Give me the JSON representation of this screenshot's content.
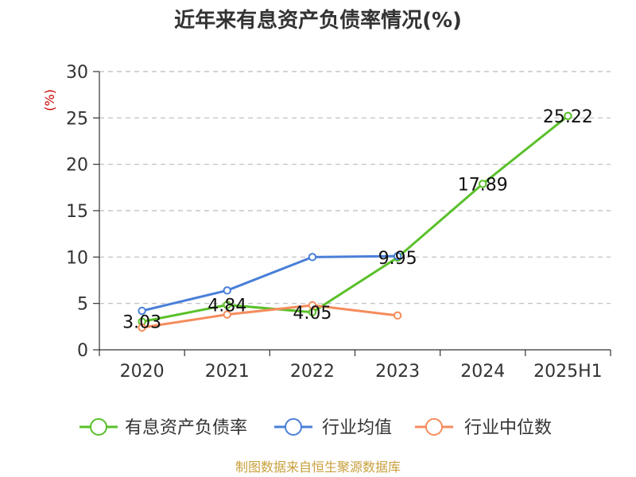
{
  "chart_data": {
    "type": "line",
    "title": "近年来有息资产负债率情况(%)",
    "ylabel": "(%)",
    "categories": [
      "2020",
      "2021",
      "2022",
      "2023",
      "2024",
      "2025H1"
    ],
    "ylim": [
      0,
      30
    ],
    "yticks": [
      0,
      5,
      10,
      15,
      20,
      25,
      30
    ],
    "grid": true,
    "legend_position": "bottom",
    "series": [
      {
        "name": "有息资产负债率",
        "color": "#5ac02a",
        "values": [
          3.03,
          4.84,
          4.05,
          9.95,
          17.89,
          25.22
        ],
        "labels": [
          "3.03",
          "4.84",
          "4.05",
          "9.95",
          "17.89",
          "25.22"
        ]
      },
      {
        "name": "行业均值",
        "color": "#4a7fd8",
        "values": [
          4.2,
          6.4,
          10.0,
          10.1,
          null,
          null
        ]
      },
      {
        "name": "行业中位数",
        "color": "#f58c5c",
        "values": [
          2.4,
          3.8,
          4.8,
          3.7,
          null,
          null
        ]
      }
    ],
    "source": "制图数据来自恒生聚源数据库"
  }
}
